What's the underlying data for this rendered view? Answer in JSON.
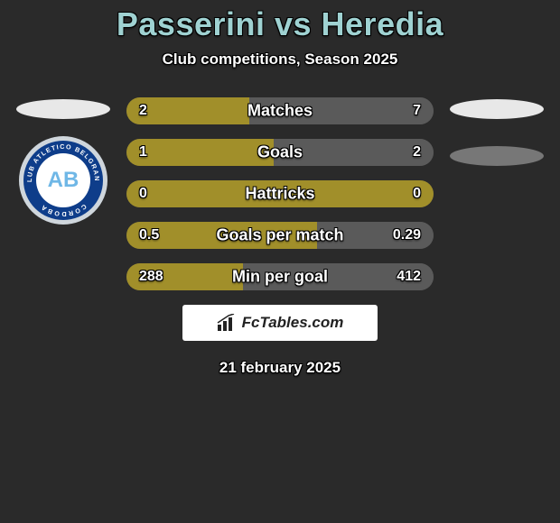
{
  "header": {
    "title": "Passerini vs Heredia",
    "title_color": "#9fd2d2",
    "subtitle": "Club competitions, Season 2025"
  },
  "left_team": {
    "crest_text": "CLUB ATLETICO BELGRANO · CORDOBA",
    "crest_initials": "AB",
    "crest_ring_outer": "#cfd6dc",
    "crest_ring_inner": "#0e3d8a",
    "crest_center_bg": "#ffffff",
    "crest_center_fg": "#6fb7e6"
  },
  "colors": {
    "left_fill": "#a18f2a",
    "right_fill": "#5a5a5a",
    "track": "#4b4b4b",
    "text": "#ffffff",
    "page_bg": "#2a2a2a"
  },
  "bars": [
    {
      "label": "Matches",
      "left": "2",
      "right": "7",
      "left_pct": 40,
      "right_pct": 60
    },
    {
      "label": "Goals",
      "left": "1",
      "right": "2",
      "left_pct": 48,
      "right_pct": 52
    },
    {
      "label": "Hattricks",
      "left": "0",
      "right": "0",
      "left_pct": 100,
      "right_pct": 0
    },
    {
      "label": "Goals per match",
      "left": "0.5",
      "right": "0.29",
      "left_pct": 62,
      "right_pct": 38
    },
    {
      "label": "Min per goal",
      "left": "288",
      "right": "412",
      "left_pct": 38,
      "right_pct": 62
    }
  ],
  "brand": {
    "label": "FcTables.com"
  },
  "footer": {
    "date": "21 february 2025"
  }
}
